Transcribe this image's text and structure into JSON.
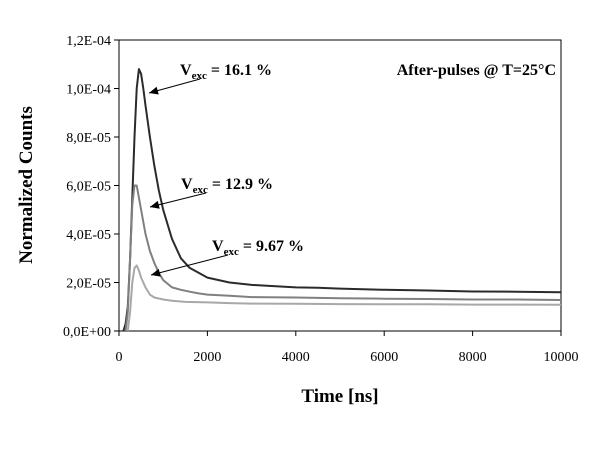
{
  "chart_data": {
    "type": "line",
    "title": "After-pulses @ T=25°C",
    "xlabel": "Time [ns]",
    "ylabel": "Normalized Counts",
    "xlim": [
      0,
      10000
    ],
    "ylim": [
      0,
      0.00012
    ],
    "x_ticks": [
      0,
      2000,
      4000,
      6000,
      8000,
      10000
    ],
    "x_tick_labels": [
      "0",
      "2000",
      "4000",
      "6000",
      "8000",
      "10000"
    ],
    "y_ticks": [
      0,
      2e-05,
      4e-05,
      6e-05,
      8e-05,
      0.0001,
      0.00012
    ],
    "y_tick_labels": [
      "0,0E+00",
      "2,0E-05",
      "4,0E-05",
      "6,0E-05",
      "8,0E-05",
      "1,0E-04",
      "1,2E-04"
    ],
    "grid": false,
    "legend": "none",
    "series": [
      {
        "label_main": "V",
        "label_sub": "exc",
        "label_value": " = 16.1 %",
        "color": "#2b2b2b",
        "x": [
          100,
          150,
          200,
          250,
          300,
          350,
          400,
          450,
          500,
          550,
          600,
          700,
          800,
          900,
          1000,
          1200,
          1400,
          1600,
          1800,
          2000,
          2500,
          3000,
          3500,
          4000,
          4500,
          5000,
          6000,
          7000,
          8000,
          9000,
          10000
        ],
        "y": [
          0,
          3e-06,
          1e-05,
          3e-05,
          5.5e-05,
          8e-05,
          0.0001,
          0.000108,
          0.000106,
          0.0001,
          9.3e-05,
          8e-05,
          6.8e-05,
          5.8e-05,
          5e-05,
          3.8e-05,
          3e-05,
          2.6e-05,
          2.4e-05,
          2.2e-05,
          2e-05,
          1.9e-05,
          1.85e-05,
          1.8e-05,
          1.78e-05,
          1.75e-05,
          1.7e-05,
          1.67e-05,
          1.63e-05,
          1.62e-05,
          1.6e-05
        ]
      },
      {
        "label_main": "V",
        "label_sub": "exc",
        "label_value": " = 12.9 %",
        "color": "#808080",
        "x": [
          150,
          200,
          250,
          300,
          350,
          400,
          450,
          500,
          600,
          700,
          800,
          900,
          1000,
          1200,
          1400,
          1600,
          1800,
          2000,
          2500,
          3000,
          4000,
          5000,
          6000,
          7000,
          8000,
          9000,
          10000
        ],
        "y": [
          0,
          8e-06,
          3e-05,
          5.2e-05,
          6e-05,
          6e-05,
          5.5e-05,
          5e-05,
          4e-05,
          3.3e-05,
          2.8e-05,
          2.4e-05,
          2.1e-05,
          1.8e-05,
          1.7e-05,
          1.62e-05,
          1.55e-05,
          1.5e-05,
          1.45e-05,
          1.4e-05,
          1.38e-05,
          1.35e-05,
          1.33e-05,
          1.32e-05,
          1.3e-05,
          1.3e-05,
          1.28e-05
        ]
      },
      {
        "label_main": "V",
        "label_sub": "exc",
        "label_value": " = 9.67 %",
        "color": "#a8a8a8",
        "x": [
          200,
          250,
          300,
          350,
          400,
          450,
          500,
          600,
          700,
          800,
          1000,
          1200,
          1500,
          2000,
          2500,
          3000,
          4000,
          5000,
          6000,
          7000,
          8000,
          9000,
          10000
        ],
        "y": [
          0,
          8e-06,
          2e-05,
          2.6e-05,
          2.7e-05,
          2.5e-05,
          2.2e-05,
          1.8e-05,
          1.5e-05,
          1.38e-05,
          1.3e-05,
          1.25e-05,
          1.2e-05,
          1.18e-05,
          1.15e-05,
          1.13e-05,
          1.12e-05,
          1.11e-05,
          1.1e-05,
          1.1e-05,
          1.09e-05,
          1.09e-05,
          1.08e-05
        ]
      }
    ]
  }
}
